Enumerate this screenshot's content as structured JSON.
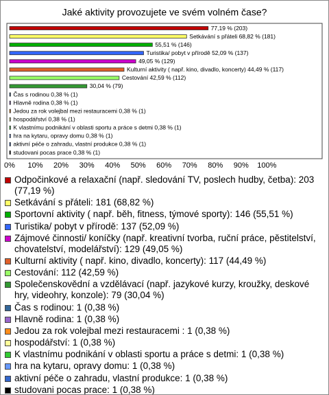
{
  "chart_data": {
    "type": "bar",
    "orientation": "horizontal",
    "title": "Jaké aktivity provozujete ve svém volném čase?",
    "categories": [
      "Odpočinkové a relaxační (např. sledování TV, poslech hudby, četba): 203 (77,19 %)",
      "Setkávání s přáteli: 181 (68,82 %)",
      "Sportovní aktivity ( např. běh, fitness, týmové sporty): 146 (55,51 %)",
      "Turistika/ pobyt v přírodě: 137 (52,09 %)",
      "Zájmové činnosti/ koníčky (např. kreativní tvorba, ruční práce, pěstitelství, chovatelství, modelářství): 129 (49,05 %)",
      "Kulturní aktivity ( např. kino, divadlo, koncerty): 117 (44,49 %)",
      "Cestování: 112 (42,59 %)",
      "Společenskovědní a vzdělávací (např. jazykové kurzy, kroužky, deskové hry, videohry, konzole): 79 (30,04 %)",
      "Čas s rodinou: 1 (0,38 %)",
      "Hlavně rodina: 1 (0,38 %)",
      "Jedou za rok volejbal mezi restauracemi : 1 (0,38 %)",
      "hospodářství: 1 (0,38 %)",
      "K vlastnímu podnikání v oblasti sportu a práce s detmi: 1 (0,38 %)",
      "hra na kytaru, opravy domu: 1 (0,38 %)",
      "aktivní péče o zahradu, vlastní produkce: 1 (0,38 %)",
      "studovani pocas prace: 1 (0,38 %)"
    ],
    "values": [
      77.19,
      68.82,
      55.51,
      52.09,
      49.05,
      44.49,
      42.59,
      30.04,
      0.38,
      0.38,
      0.38,
      0.38,
      0.38,
      0.38,
      0.38,
      0.38
    ],
    "value_labels": [
      "77,19 % (203)",
      "Setkávání s přáteli 68,82 % (181)",
      "55,51 % (146)",
      "Turistika/ pobyt v přírodě 52,09 % (137)",
      "49,05 % (129)",
      "Kulturní aktivity ( např. kino, divadlo, koncerty) 44,49 % (117)",
      "Cestování 42,59 % (112)",
      "30,04 % (79)",
      "Čas s rodinou 0,38 % (1)",
      "Hlavně rodina 0,38 % (1)",
      "Jedou za rok volejbal mezi restauracemi  0,38 % (1)",
      "hospodářství 0,38 % (1)",
      "K vlastnímu podnikání v oblasti sportu a práce s detmi 0,38 % (1)",
      "hra na kytaru, opravy domu 0,38 % (1)",
      "aktivní péče o zahradu, vlastní produkce 0,38 % (1)",
      "studovani pocas prace 0,38 % (1)"
    ],
    "colors": [
      "#c00000",
      "#ffff66",
      "#00b000",
      "#3366ff",
      "#cc00cc",
      "#e0602a",
      "#99ff66",
      "#339933",
      "#336699",
      "#9966cc",
      "#ff8c1a",
      "#ffff99",
      "#33cc33",
      "#6699ff",
      "#3366cc",
      "#000000"
    ],
    "xlim": [
      -0.8,
      121.5
    ],
    "xticks": [
      {
        "value": 0,
        "label": "0%"
      },
      {
        "value": 10,
        "label": "10%"
      },
      {
        "value": 20,
        "label": "20%"
      },
      {
        "value": 30,
        "label": "30%"
      },
      {
        "value": 40,
        "label": "40%"
      },
      {
        "value": 50,
        "label": "50%"
      },
      {
        "value": 60,
        "label": "60%"
      },
      {
        "value": 70,
        "label": "70%"
      },
      {
        "value": 80,
        "label": "80%"
      },
      {
        "value": 90,
        "label": "90%"
      },
      {
        "value": 100,
        "label": "100%"
      }
    ]
  }
}
